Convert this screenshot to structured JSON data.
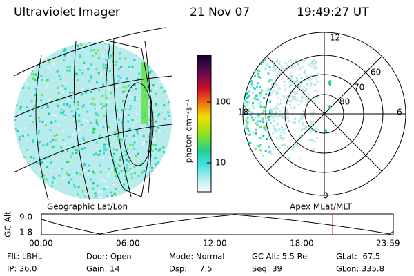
{
  "header": {
    "instrument": "Ultraviolet Imager",
    "date": "21 Nov 07",
    "time": "19:49:27 UT"
  },
  "colorbar": {
    "label": "photon cm⁻²s⁻¹",
    "ticks": [
      "100",
      "10"
    ]
  },
  "polar_plot": {
    "mlt_labels": [
      "12",
      "18",
      "6",
      "0"
    ],
    "mlat_labels": [
      "60",
      "70",
      "80"
    ]
  },
  "panel_labels": {
    "left": "Geographic Lat/Lon",
    "right": "Apex MLat/MLT"
  },
  "altitude_plot": {
    "axis_label": "GC Alt",
    "y_labels": [
      "9.0",
      "1.8"
    ],
    "x_labels": [
      "00:00",
      "06:00",
      "12:00",
      "18:00",
      "23:59"
    ]
  },
  "status": {
    "rows": [
      [
        "Flt: LBHL",
        "Door: Open",
        "Mode: Normal",
        "GC Alt: 5.5 Re",
        "GLat: -67.5"
      ],
      [
        "IP: 36.0",
        "Gain: 14",
        "Dsp:     7.5",
        "Seq: 39",
        "GLon: 335.8"
      ]
    ]
  }
}
